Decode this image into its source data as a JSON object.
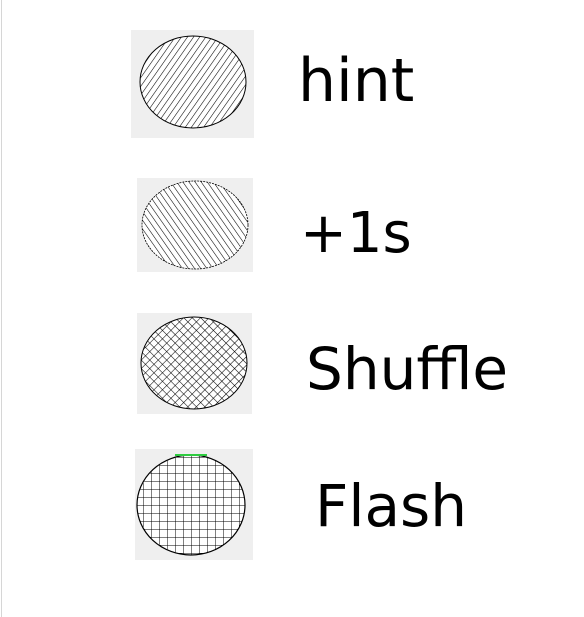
{
  "powerups": [
    {
      "label": "hint",
      "icon": "diagonal-hatch-circle-icon"
    },
    {
      "label": "+1s",
      "icon": "diagonal-hatch-circle-icon"
    },
    {
      "label": "Shuffle",
      "icon": "crosshatch-circle-icon"
    },
    {
      "label": "Flash",
      "icon": "grid-circle-icon"
    }
  ],
  "colors": {
    "tile_background": "#efefef",
    "hatch": "#000000",
    "flash_accent": "#2ecc40"
  }
}
